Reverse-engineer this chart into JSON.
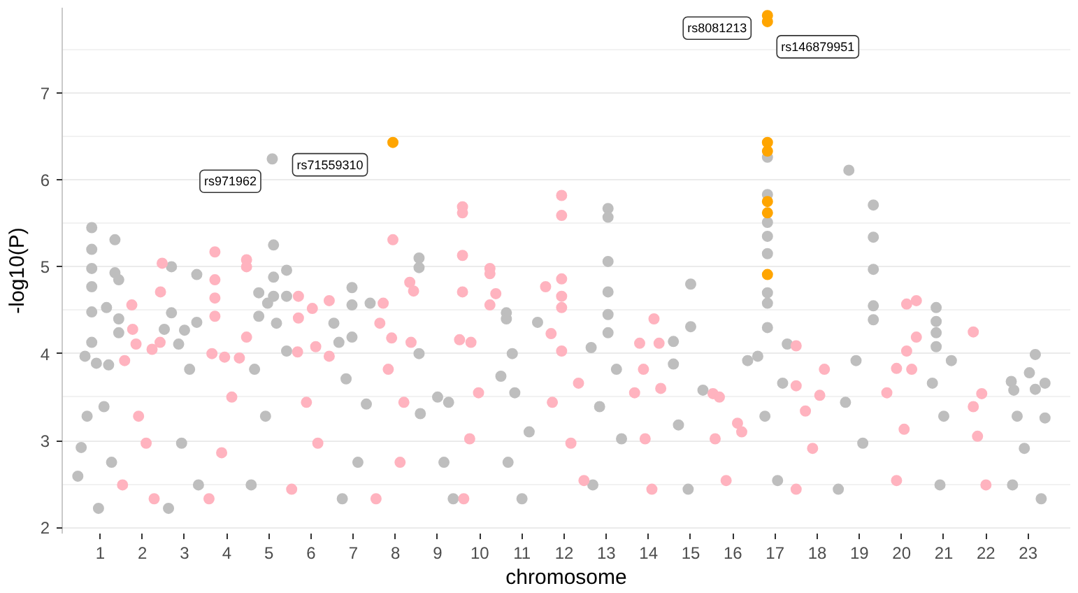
{
  "chart_data": {
    "type": "scatter",
    "xlabel": "chromosome",
    "ylabel": "-log10(P)",
    "marker": "circle",
    "grid": "y",
    "xlim": [
      0.1,
      24.0
    ],
    "ylim": [
      1.93,
      7.98
    ],
    "yticks": [
      2,
      3,
      4,
      5,
      6,
      7
    ],
    "xticks": [
      1,
      2,
      3,
      4,
      5,
      6,
      7,
      8,
      9,
      10,
      11,
      12,
      13,
      14,
      15,
      16,
      17,
      18,
      19,
      20,
      21,
      22,
      23
    ],
    "series": [
      {
        "color": "#bebebe",
        "x": [
          0.64,
          0.8,
          0.8,
          0.8,
          0.8,
          0.8,
          0.8,
          0.91,
          0.55,
          0.47,
          0.96,
          0.69,
          1.15,
          1.35,
          1.35,
          1.44,
          1.44,
          1.44,
          1.2,
          1.09,
          1.27,
          2.69,
          3.29,
          2.69,
          2.52,
          3.0,
          3.29,
          2.86,
          3.12,
          2.93,
          3.33,
          2.62,
          5.08,
          5.11,
          5.11,
          5.11,
          4.97,
          4.76,
          4.76,
          5.42,
          5.42,
          5.42,
          4.66,
          5.18,
          4.92,
          4.58,
          6.97,
          6.97,
          6.97,
          6.54,
          6.66,
          7.4,
          7.31,
          6.83,
          7.11,
          6.74,
          8.56,
          8.56,
          8.56,
          8.59,
          9.0,
          9.26,
          9.15,
          9.37,
          10.63,
          10.63,
          10.77,
          10.5,
          10.83,
          11.17,
          11.37,
          10.67,
          11.0,
          13.04,
          13.04,
          13.04,
          13.04,
          13.04,
          13.04,
          12.64,
          13.24,
          12.84,
          13.36,
          12.68,
          15.0,
          15.0,
          14.59,
          14.59,
          15.29,
          14.71,
          14.94,
          16.82,
          16.82,
          16.82,
          16.82,
          16.82,
          16.82,
          16.82,
          16.82,
          16.59,
          17.29,
          16.35,
          17.18,
          16.76,
          17.06,
          18.75,
          19.33,
          19.33,
          19.33,
          19.33,
          19.33,
          18.92,
          18.67,
          19.08,
          18.5,
          20.82,
          20.82,
          20.82,
          20.82,
          21.18,
          20.73,
          21.0,
          20.91,
          23.17,
          23.03,
          22.6,
          23.4,
          22.66,
          23.17,
          23.4,
          22.74,
          22.91,
          22.63,
          23.31
        ],
        "values": [
          3.97,
          5.45,
          5.2,
          4.98,
          4.77,
          4.48,
          4.13,
          3.89,
          2.92,
          2.59,
          2.22,
          3.28,
          4.53,
          5.31,
          4.93,
          4.85,
          4.4,
          4.24,
          3.87,
          3.39,
          2.75,
          5.0,
          4.91,
          4.47,
          4.28,
          4.27,
          4.36,
          4.11,
          3.82,
          2.97,
          2.49,
          2.22,
          6.24,
          5.25,
          4.88,
          4.66,
          4.58,
          4.7,
          4.43,
          4.96,
          4.66,
          4.03,
          3.82,
          4.35,
          3.28,
          2.49,
          4.76,
          4.56,
          4.19,
          4.35,
          4.13,
          4.58,
          3.42,
          3.71,
          2.75,
          2.33,
          5.1,
          4.99,
          4.0,
          3.31,
          3.5,
          3.44,
          2.75,
          2.33,
          4.47,
          4.4,
          4.0,
          3.74,
          3.55,
          3.1,
          4.36,
          2.75,
          2.33,
          5.67,
          5.57,
          5.06,
          4.71,
          4.45,
          4.24,
          4.07,
          3.82,
          3.39,
          3.02,
          2.49,
          4.8,
          4.31,
          4.14,
          3.88,
          3.58,
          3.18,
          2.44,
          6.26,
          5.83,
          5.51,
          5.35,
          5.15,
          4.7,
          4.58,
          4.3,
          3.97,
          4.11,
          3.92,
          3.66,
          3.28,
          2.54,
          6.11,
          5.71,
          5.34,
          4.97,
          4.55,
          4.39,
          3.92,
          3.44,
          2.97,
          2.44,
          4.53,
          4.37,
          4.24,
          4.08,
          3.92,
          3.66,
          3.28,
          2.49,
          3.99,
          3.78,
          3.68,
          3.66,
          3.58,
          3.59,
          3.26,
          3.28,
          2.91,
          2.49,
          2.33
        ]
      },
      {
        "color": "#ffb3bf",
        "x": [
          1.75,
          1.77,
          1.85,
          2.23,
          2.47,
          2.43,
          2.42,
          1.58,
          1.91,
          2.09,
          1.53,
          2.28,
          3.72,
          3.72,
          3.72,
          3.72,
          3.65,
          3.95,
          4.3,
          4.47,
          4.47,
          4.47,
          4.12,
          3.88,
          3.58,
          5.7,
          5.7,
          6.03,
          6.11,
          6.43,
          6.43,
          5.68,
          5.89,
          6.16,
          5.54,
          7.94,
          7.71,
          8.34,
          8.43,
          8.37,
          7.91,
          7.63,
          7.83,
          8.2,
          8.11,
          7.54,
          9.59,
          9.59,
          9.59,
          9.59,
          10.24,
          10.24,
          10.38,
          10.24,
          9.52,
          9.79,
          9.97,
          9.76,
          9.62,
          11.94,
          11.94,
          11.94,
          11.94,
          11.94,
          11.56,
          11.69,
          11.94,
          12.34,
          11.72,
          12.16,
          12.47,
          14.13,
          13.79,
          14.25,
          13.88,
          14.29,
          13.67,
          13.92,
          14.08,
          15.53,
          15.68,
          16.11,
          15.58,
          16.21,
          15.84,
          17.5,
          18.17,
          17.5,
          18.06,
          17.72,
          17.89,
          17.5,
          20.35,
          20.12,
          20.35,
          20.12,
          19.88,
          20.24,
          19.65,
          20.06,
          19.88,
          21.7,
          21.9,
          21.7,
          21.8,
          22.0
        ],
        "values": [
          4.56,
          4.28,
          4.11,
          4.05,
          5.04,
          4.71,
          4.13,
          3.92,
          3.28,
          2.97,
          2.49,
          2.33,
          5.17,
          4.85,
          4.64,
          4.43,
          4.0,
          3.96,
          3.95,
          5.08,
          5.0,
          4.19,
          3.5,
          2.86,
          2.33,
          4.66,
          4.41,
          4.52,
          4.08,
          4.61,
          3.97,
          4.02,
          3.44,
          2.97,
          2.44,
          5.31,
          4.58,
          4.82,
          4.72,
          4.13,
          4.18,
          4.35,
          3.82,
          3.44,
          2.75,
          2.33,
          5.69,
          5.62,
          5.13,
          4.71,
          4.98,
          4.92,
          4.69,
          4.56,
          4.16,
          4.13,
          3.55,
          3.02,
          2.33,
          5.82,
          5.59,
          4.86,
          4.66,
          4.53,
          4.77,
          4.23,
          4.03,
          3.66,
          3.44,
          2.97,
          2.54,
          4.4,
          4.12,
          4.12,
          3.82,
          3.6,
          3.55,
          3.02,
          2.44,
          3.54,
          3.5,
          3.2,
          3.02,
          3.1,
          2.54,
          4.09,
          3.82,
          3.63,
          3.52,
          3.34,
          2.91,
          2.44,
          4.61,
          4.57,
          4.19,
          4.03,
          3.83,
          3.82,
          3.55,
          3.13,
          2.54,
          4.25,
          3.54,
          3.39,
          3.05,
          2.49
        ]
      },
      {
        "color": "#ffa500",
        "x": [
          7.94,
          16.82,
          16.82,
          16.82,
          16.82,
          16.82,
          16.82,
          16.82
        ],
        "values": [
          6.43,
          7.89,
          7.82,
          6.43,
          6.33,
          5.75,
          5.62,
          4.91
        ]
      }
    ],
    "annotations": [
      {
        "text": "rs971962",
        "x": 5.08,
        "y": 6.24
      },
      {
        "text": "rs71559310",
        "x": 7.94,
        "y": 6.43
      },
      {
        "text": "rs8081213",
        "x": 16.82,
        "y": 7.89
      },
      {
        "text": "rs146879951",
        "x": 16.82,
        "y": 7.82
      }
    ]
  }
}
